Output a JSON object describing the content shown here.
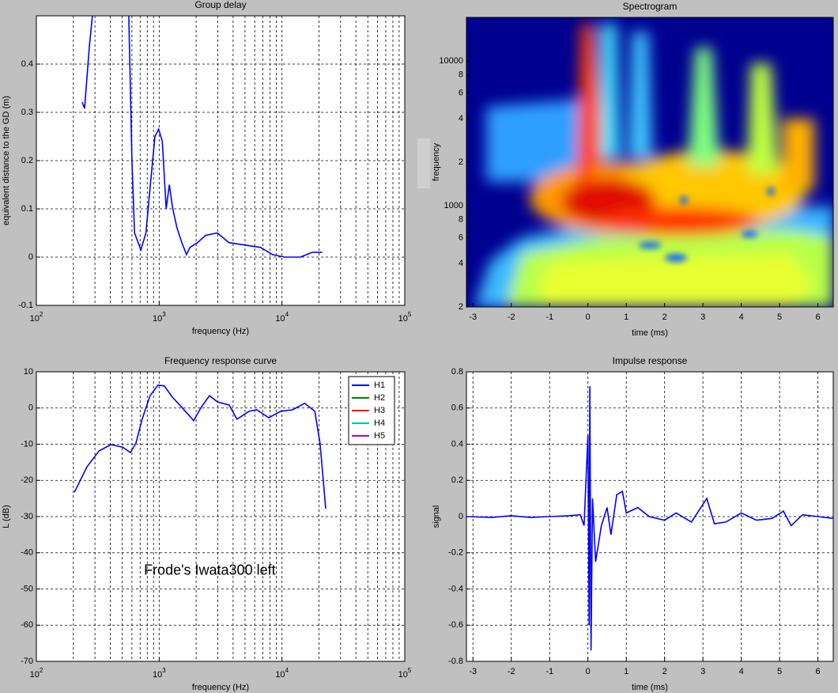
{
  "chart_data": [
    {
      "type": "line",
      "title": "Group delay",
      "xlabel": "frequency  (Hz)",
      "ylabel": "equivalent distance to the GD (m)",
      "xlog": true,
      "grid": true,
      "xlim": [
        100,
        100000
      ],
      "xticks": [
        {
          "value": 100,
          "label": "10",
          "exp": "2"
        },
        {
          "value": 1000,
          "label": "10",
          "exp": "3"
        },
        {
          "value": 10000,
          "label": "10",
          "exp": "4"
        },
        {
          "value": 100000,
          "label": "10",
          "exp": "5"
        }
      ],
      "ylim": [
        -0.1,
        0.5
      ],
      "yticks": [
        -0.1,
        0,
        0.1,
        0.2,
        0.3,
        0.4
      ],
      "series": [
        {
          "color": "#0000ff",
          "x": [
            236,
            247,
            258,
            270,
            286,
            420,
            566,
            600,
            630,
            710,
            780,
            848,
            924,
            990,
            1060,
            1140,
            1210,
            1290,
            1400,
            1530,
            1670,
            1780,
            2050,
            2390,
            2980,
            3700,
            5000,
            6700,
            8400,
            10500,
            14100,
            17700,
            21300
          ],
          "values": [
            0.321,
            0.308,
            0.37,
            0.436,
            0.5,
            null,
            0.5,
            0.2,
            0.05,
            0.015,
            0.05,
            0.15,
            0.25,
            0.265,
            0.24,
            0.1,
            0.15,
            0.1,
            0.06,
            0.03,
            0.005,
            0.02,
            0.03,
            0.045,
            0.05,
            0.03,
            0.025,
            0.02,
            0.005,
            0.0,
            0.0,
            0.01,
            0.01
          ]
        }
      ]
    },
    {
      "type": "spectrogram",
      "title": "Spectrogram",
      "xlabel": "time (ms)",
      "ylabel": "frequency",
      "ylog": true,
      "grid": false,
      "xlim": [
        -3.17,
        6.4
      ],
      "xticks": [
        -3,
        -2,
        -1,
        0,
        1,
        2,
        3,
        4,
        5,
        6
      ],
      "ylim": [
        200,
        20000
      ],
      "yticks": [
        {
          "value": 200,
          "label": "2"
        },
        {
          "value": 400,
          "label": "4"
        },
        {
          "value": 600,
          "label": "6"
        },
        {
          "value": 800,
          "label": "8"
        },
        1000,
        {
          "value": 2000,
          "label": "2"
        },
        {
          "value": 4000,
          "label": "4"
        },
        {
          "value": 6000,
          "label": "6"
        },
        {
          "value": 8000,
          "label": "8"
        },
        10000
      ]
    },
    {
      "type": "line",
      "title": "Frequency response curve",
      "xlabel": "frequency  (Hz)",
      "ylabel": "L  (dB)",
      "xlog": true,
      "grid": true,
      "annotation": "Frode's Iwata300 left",
      "xlim": [
        100,
        100000
      ],
      "xticks": [
        {
          "value": 100,
          "label": "10",
          "exp": "2"
        },
        {
          "value": 1000,
          "label": "10",
          "exp": "3"
        },
        {
          "value": 10000,
          "label": "10",
          "exp": "4"
        },
        {
          "value": 100000,
          "label": "10",
          "exp": "5"
        }
      ],
      "ylim": [
        -70,
        10
      ],
      "yticks": [
        -70,
        -60,
        -50,
        -40,
        -30,
        -20,
        -10,
        0,
        10
      ],
      "legend": [
        {
          "name": "H1",
          "color": "#0000ff"
        },
        {
          "name": "H2",
          "color": "#008000"
        },
        {
          "name": "H3",
          "color": "#ff0000"
        },
        {
          "name": "H4",
          "color": "#00bfbf"
        },
        {
          "name": "H5",
          "color": "#bf00bf"
        }
      ],
      "series": [
        {
          "name": "H1",
          "color": "#0000ff",
          "x": [
            204,
            258,
            323,
            404,
            503,
            583,
            647,
            727,
            843,
            978,
            1100,
            1280,
            1530,
            1910,
            2200,
            2570,
            2980,
            3720,
            4300,
            5400,
            6230,
            7800,
            9750,
            12200,
            15300,
            18500,
            20400,
            22700
          ],
          "values": [
            -23.3,
            -16.3,
            -11.9,
            -10.1,
            -10.8,
            -12.3,
            -9.7,
            -3.1,
            3.4,
            6.3,
            6.1,
            3.0,
            0.2,
            -3.5,
            0.2,
            3.4,
            1.7,
            0.8,
            -3.1,
            -0.9,
            -0.5,
            -2.7,
            -0.9,
            -0.5,
            1.3,
            -0.9,
            -9.7,
            -27.8
          ]
        }
      ]
    },
    {
      "type": "line",
      "title": "Impulse response",
      "xlabel": "time (ms)",
      "ylabel": "signal",
      "grid": true,
      "xlim": [
        -3.17,
        6.4
      ],
      "xticks": [
        -3,
        -2,
        -1,
        0,
        1,
        2,
        3,
        4,
        5,
        6
      ],
      "ylim": [
        -0.8,
        0.8
      ],
      "yticks": [
        -0.8,
        -0.6,
        -0.4,
        -0.2,
        0,
        0.2,
        0.4,
        0.6,
        0.8
      ],
      "series": [
        {
          "color": "#0000ff",
          "x": [
            -3.17,
            -2.5,
            -2,
            -1.5,
            -1,
            -0.5,
            -0.2,
            -0.1,
            0,
            0.03,
            0.05,
            0.08,
            0.12,
            0.2,
            0.35,
            0.5,
            0.6,
            0.75,
            0.9,
            1.0,
            1.3,
            1.6,
            2.0,
            2.3,
            2.7,
            3.1,
            3.3,
            3.6,
            4.0,
            4.4,
            4.8,
            5.1,
            5.3,
            5.6,
            6.0,
            6.4
          ],
          "values": [
            0,
            -0.005,
            0.005,
            -0.005,
            0,
            0.005,
            0.01,
            -0.05,
            0.45,
            -0.6,
            0.72,
            -0.74,
            0.1,
            -0.25,
            -0.05,
            0.05,
            -0.1,
            0.12,
            0.14,
            0.02,
            0.05,
            0,
            -0.02,
            0.02,
            -0.03,
            0.1,
            -0.04,
            -0.03,
            0.02,
            -0.02,
            -0.01,
            0.03,
            -0.05,
            0.01,
            0,
            -0.01
          ]
        }
      ]
    }
  ]
}
